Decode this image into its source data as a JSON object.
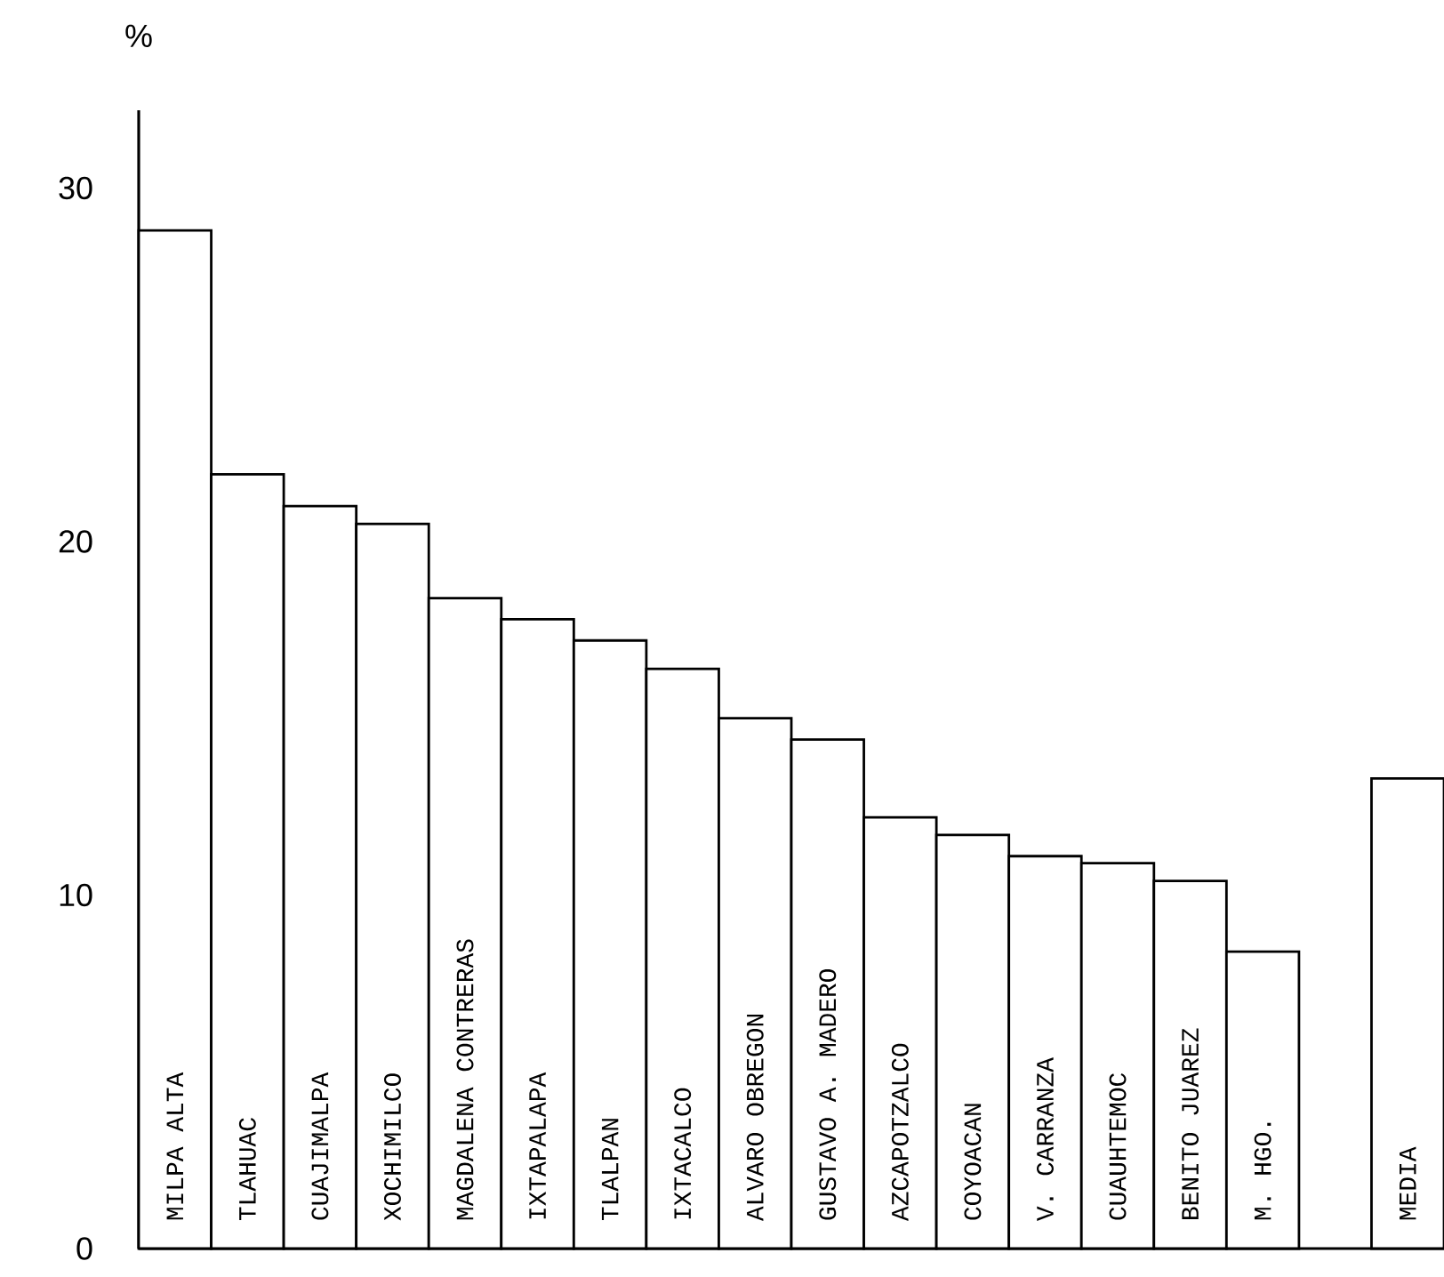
{
  "chart_data": {
    "type": "bar",
    "ylabel": "%",
    "categories": [
      "MILPA ALTA",
      "TLAHUAC",
      "CUAJIMALPA",
      "XOCHIMILCO",
      "MAGDALENA CONTRERAS",
      "IXTAPALAPA",
      "TLALPAN",
      "IXTACALCO",
      "ALVARO OBREGON",
      "GUSTAVO A. MADERO",
      "AZCAPOTZALCO",
      "COYOACAN",
      "V. CARRANZA",
      "CUAUHTEMOC",
      "BENITO JUAREZ",
      "M. HGO.",
      null,
      "MEDIA"
    ],
    "values": [
      28.8,
      21.9,
      21.0,
      20.5,
      18.4,
      17.8,
      17.2,
      16.4,
      15.0,
      14.4,
      12.2,
      11.7,
      11.1,
      10.9,
      10.4,
      8.4,
      null,
      13.3
    ],
    "color": "#ffffff",
    "ylim": [
      0,
      32.2
    ],
    "yticks": [
      0,
      10,
      20,
      30
    ]
  }
}
